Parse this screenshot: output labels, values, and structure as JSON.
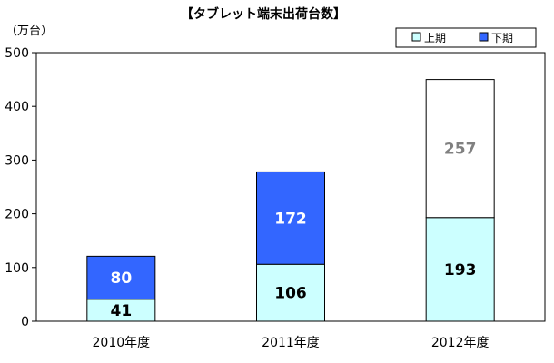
{
  "chart_data": {
    "type": "bar",
    "stacked": true,
    "title": "【タブレット端末出荷台数】",
    "unit_label": "（万台）",
    "xlabel": "",
    "ylabel": "",
    "categories": [
      "2010年度",
      "2011年度",
      "2012年度"
    ],
    "series": [
      {
        "name": "上期",
        "values": [
          41,
          106,
          193
        ]
      },
      {
        "name": "下期",
        "values": [
          80,
          172,
          257
        ]
      }
    ],
    "series_colors": [
      "#ccffff",
      "#3366ff",
      "#ffffff"
    ],
    "ylim": [
      0,
      500
    ],
    "yticks": [
      0,
      100,
      200,
      300,
      400,
      500
    ],
    "grid": false,
    "legend_position": "top-right"
  }
}
